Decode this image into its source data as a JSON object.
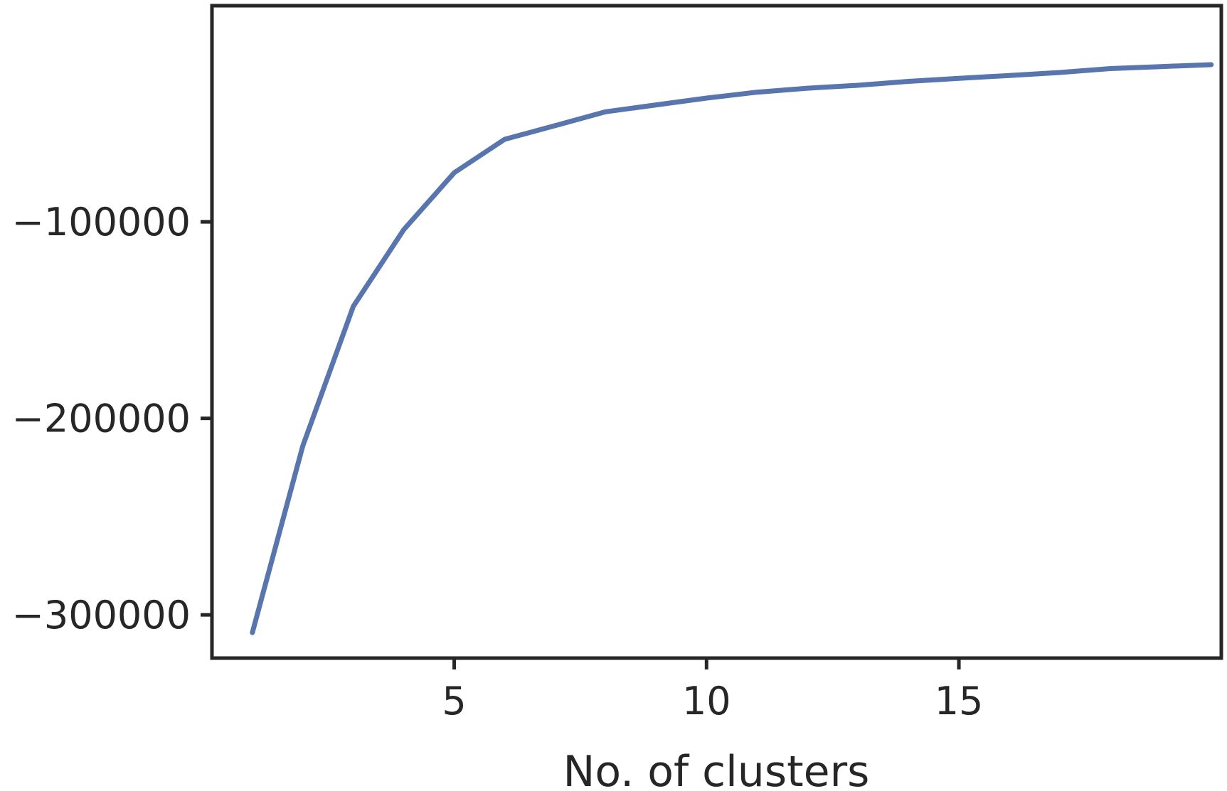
{
  "chart_data": {
    "type": "line",
    "title": "",
    "xlabel": "No. of clusters",
    "ylabel": "",
    "xlim": [
      0.2,
      20.2
    ],
    "ylim": [
      -322000,
      10000
    ],
    "x_ticks": [
      5,
      10,
      15
    ],
    "y_ticks": [
      -100000,
      -200000,
      -300000
    ],
    "y_tick_labels": [
      "−100000",
      "−200000",
      "−300000"
    ],
    "grid": false,
    "legend": "none",
    "series": [
      {
        "color": "#5875ae",
        "x": [
          1,
          2,
          3,
          4,
          5,
          6,
          7,
          8,
          9,
          10,
          11,
          12,
          13,
          14,
          15,
          16,
          17,
          18,
          19,
          20
        ],
        "y": [
          -309000,
          -214000,
          -143000,
          -104000,
          -75000,
          -58000,
          -51000,
          -44000,
          -40500,
          -37000,
          -34000,
          -32000,
          -30500,
          -28500,
          -27000,
          -25500,
          -24000,
          -22000,
          -21000,
          -20000
        ]
      }
    ]
  }
}
